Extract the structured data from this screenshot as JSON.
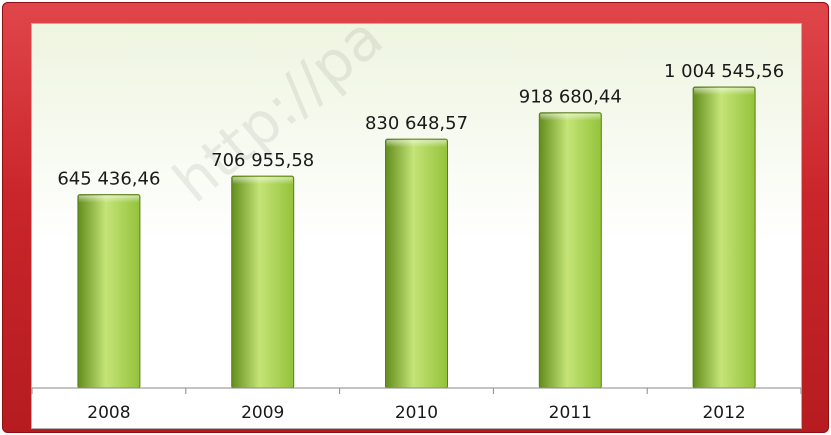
{
  "chart_data": {
    "type": "bar",
    "categories": [
      "2008",
      "2009",
      "2010",
      "2011",
      "2012"
    ],
    "values": [
      645436.46,
      706955.58,
      830648.57,
      918680.44,
      1004545.56
    ],
    "value_labels": [
      "645 436,46",
      "706 955,58",
      "830 648,57",
      "918 680,44",
      "1 004 545,56"
    ],
    "title": "",
    "xlabel": "",
    "ylabel": "",
    "grid": false,
    "legend": "none",
    "colors": {
      "bar_light": "#c4e477",
      "bar_mid": "#94c23a",
      "bar_dark": "#628d1c",
      "frame": "#c9262b",
      "plot_background": "#ffffff"
    }
  },
  "watermark": "http://pa"
}
